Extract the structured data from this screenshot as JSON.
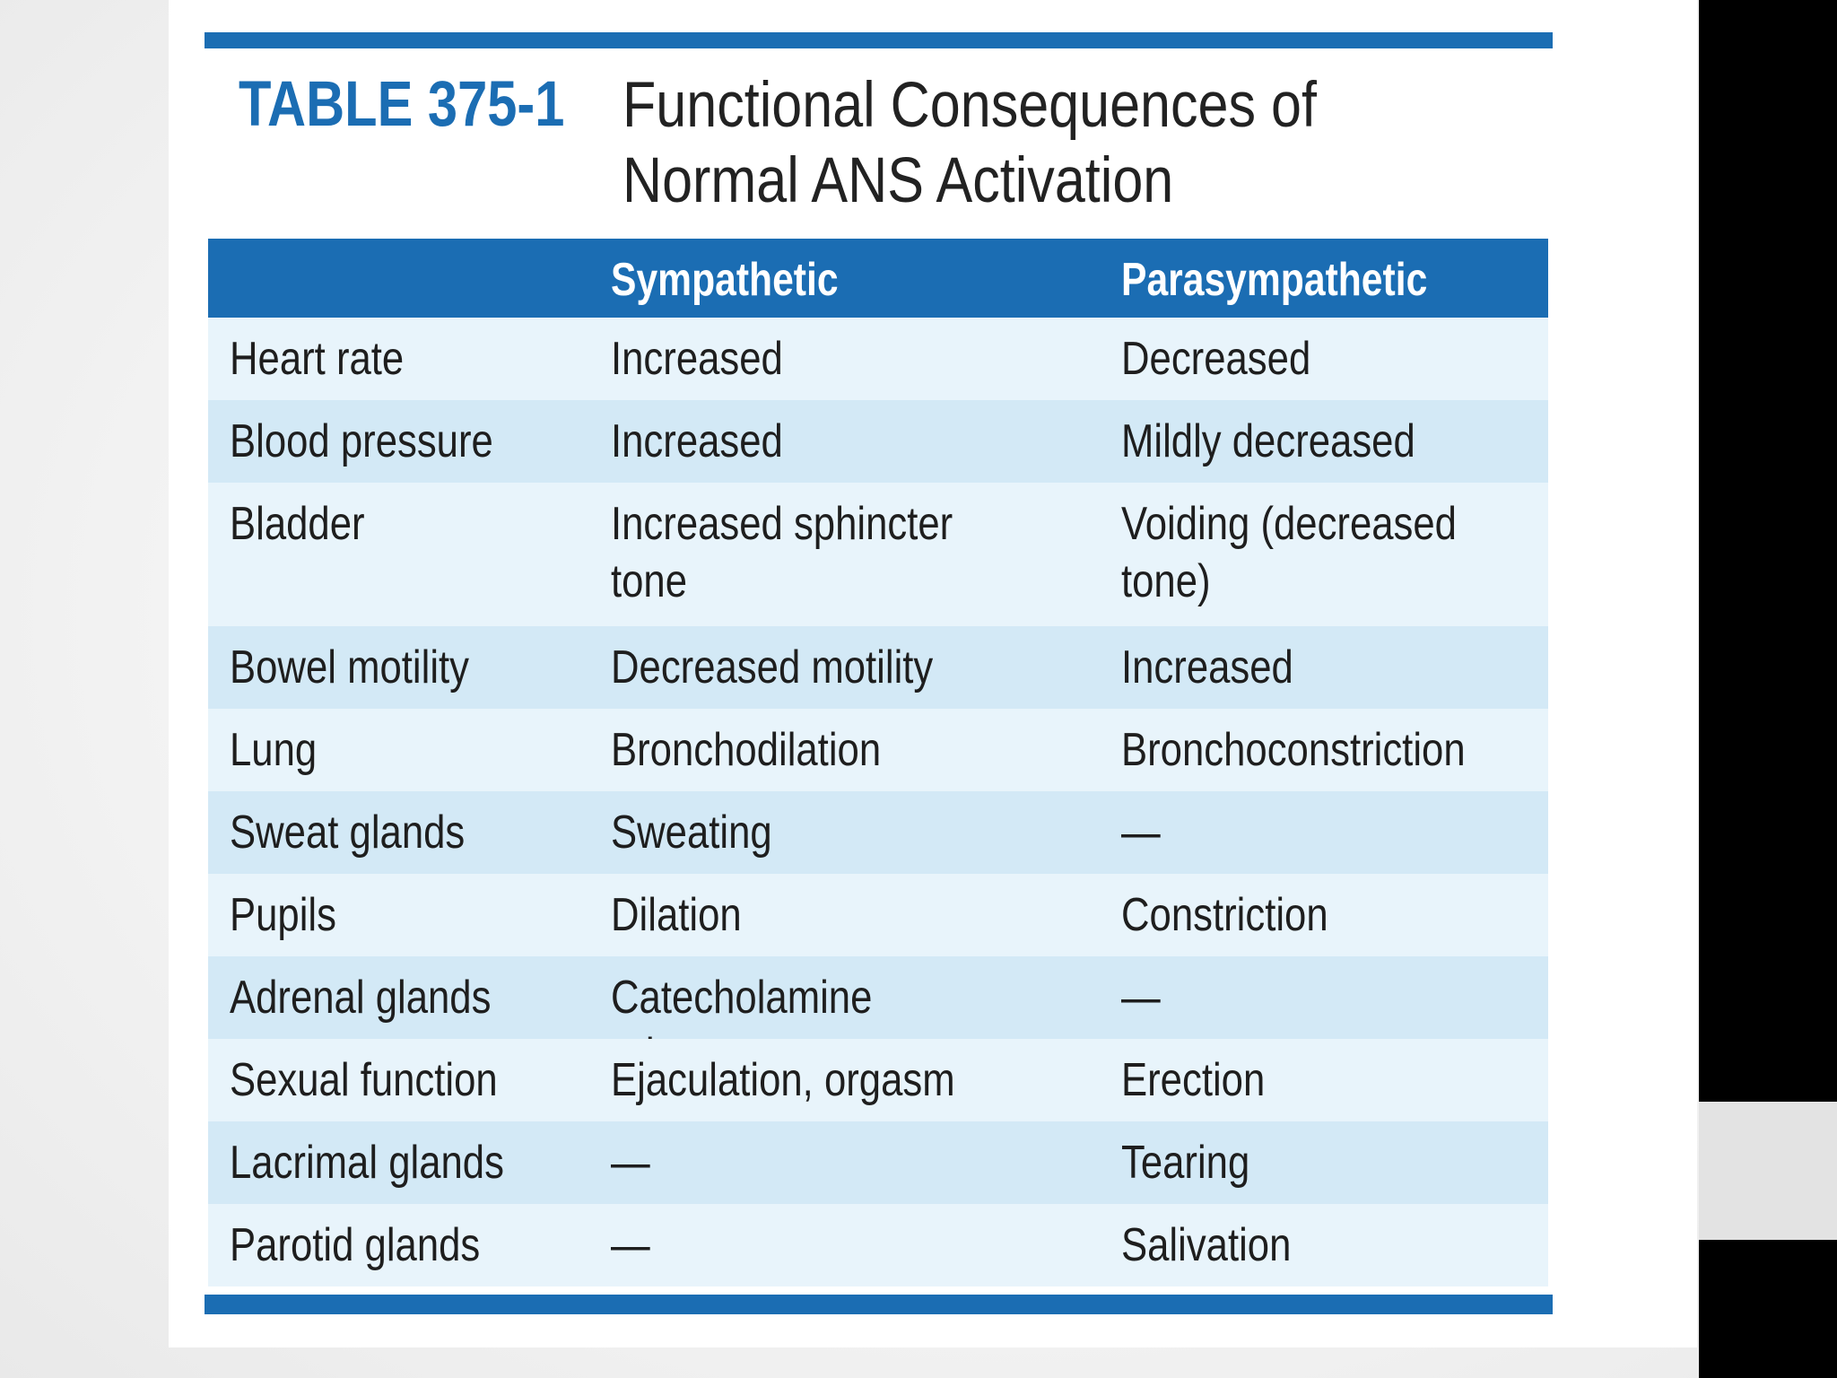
{
  "title": {
    "table_number": "TABLE 375-1",
    "caption": "Functional Consequences of Normal ANS Activation"
  },
  "table": {
    "headers": [
      "",
      "Sympathetic",
      "Parasympathetic"
    ],
    "rows": [
      [
        "Heart rate",
        "Increased",
        "Decreased"
      ],
      [
        "Blood pressure",
        "Increased",
        "Mildly decreased"
      ],
      [
        "Bladder",
        "Increased sphincter tone",
        "Voiding (decreased tone)"
      ],
      [
        "Bowel motility",
        "Decreased motility",
        "Increased"
      ],
      [
        "Lung",
        "Bronchodilation",
        "Bronchoconstriction"
      ],
      [
        "Sweat glands",
        "Sweating",
        "—"
      ],
      [
        "Pupils",
        "Dilation",
        "Constriction"
      ],
      [
        "Adrenal glands",
        "Catecholamine release",
        "—"
      ],
      [
        "Sexual function",
        "Ejaculation, orgasm",
        "Erection"
      ],
      [
        "Lacrimal glands",
        "—",
        "Tearing"
      ],
      [
        "Parotid glands",
        "—",
        "Salivation"
      ]
    ]
  },
  "colors": {
    "accent": "#1b6db3",
    "row_light": "#e8f4fb",
    "row_dark": "#d3e9f6"
  }
}
